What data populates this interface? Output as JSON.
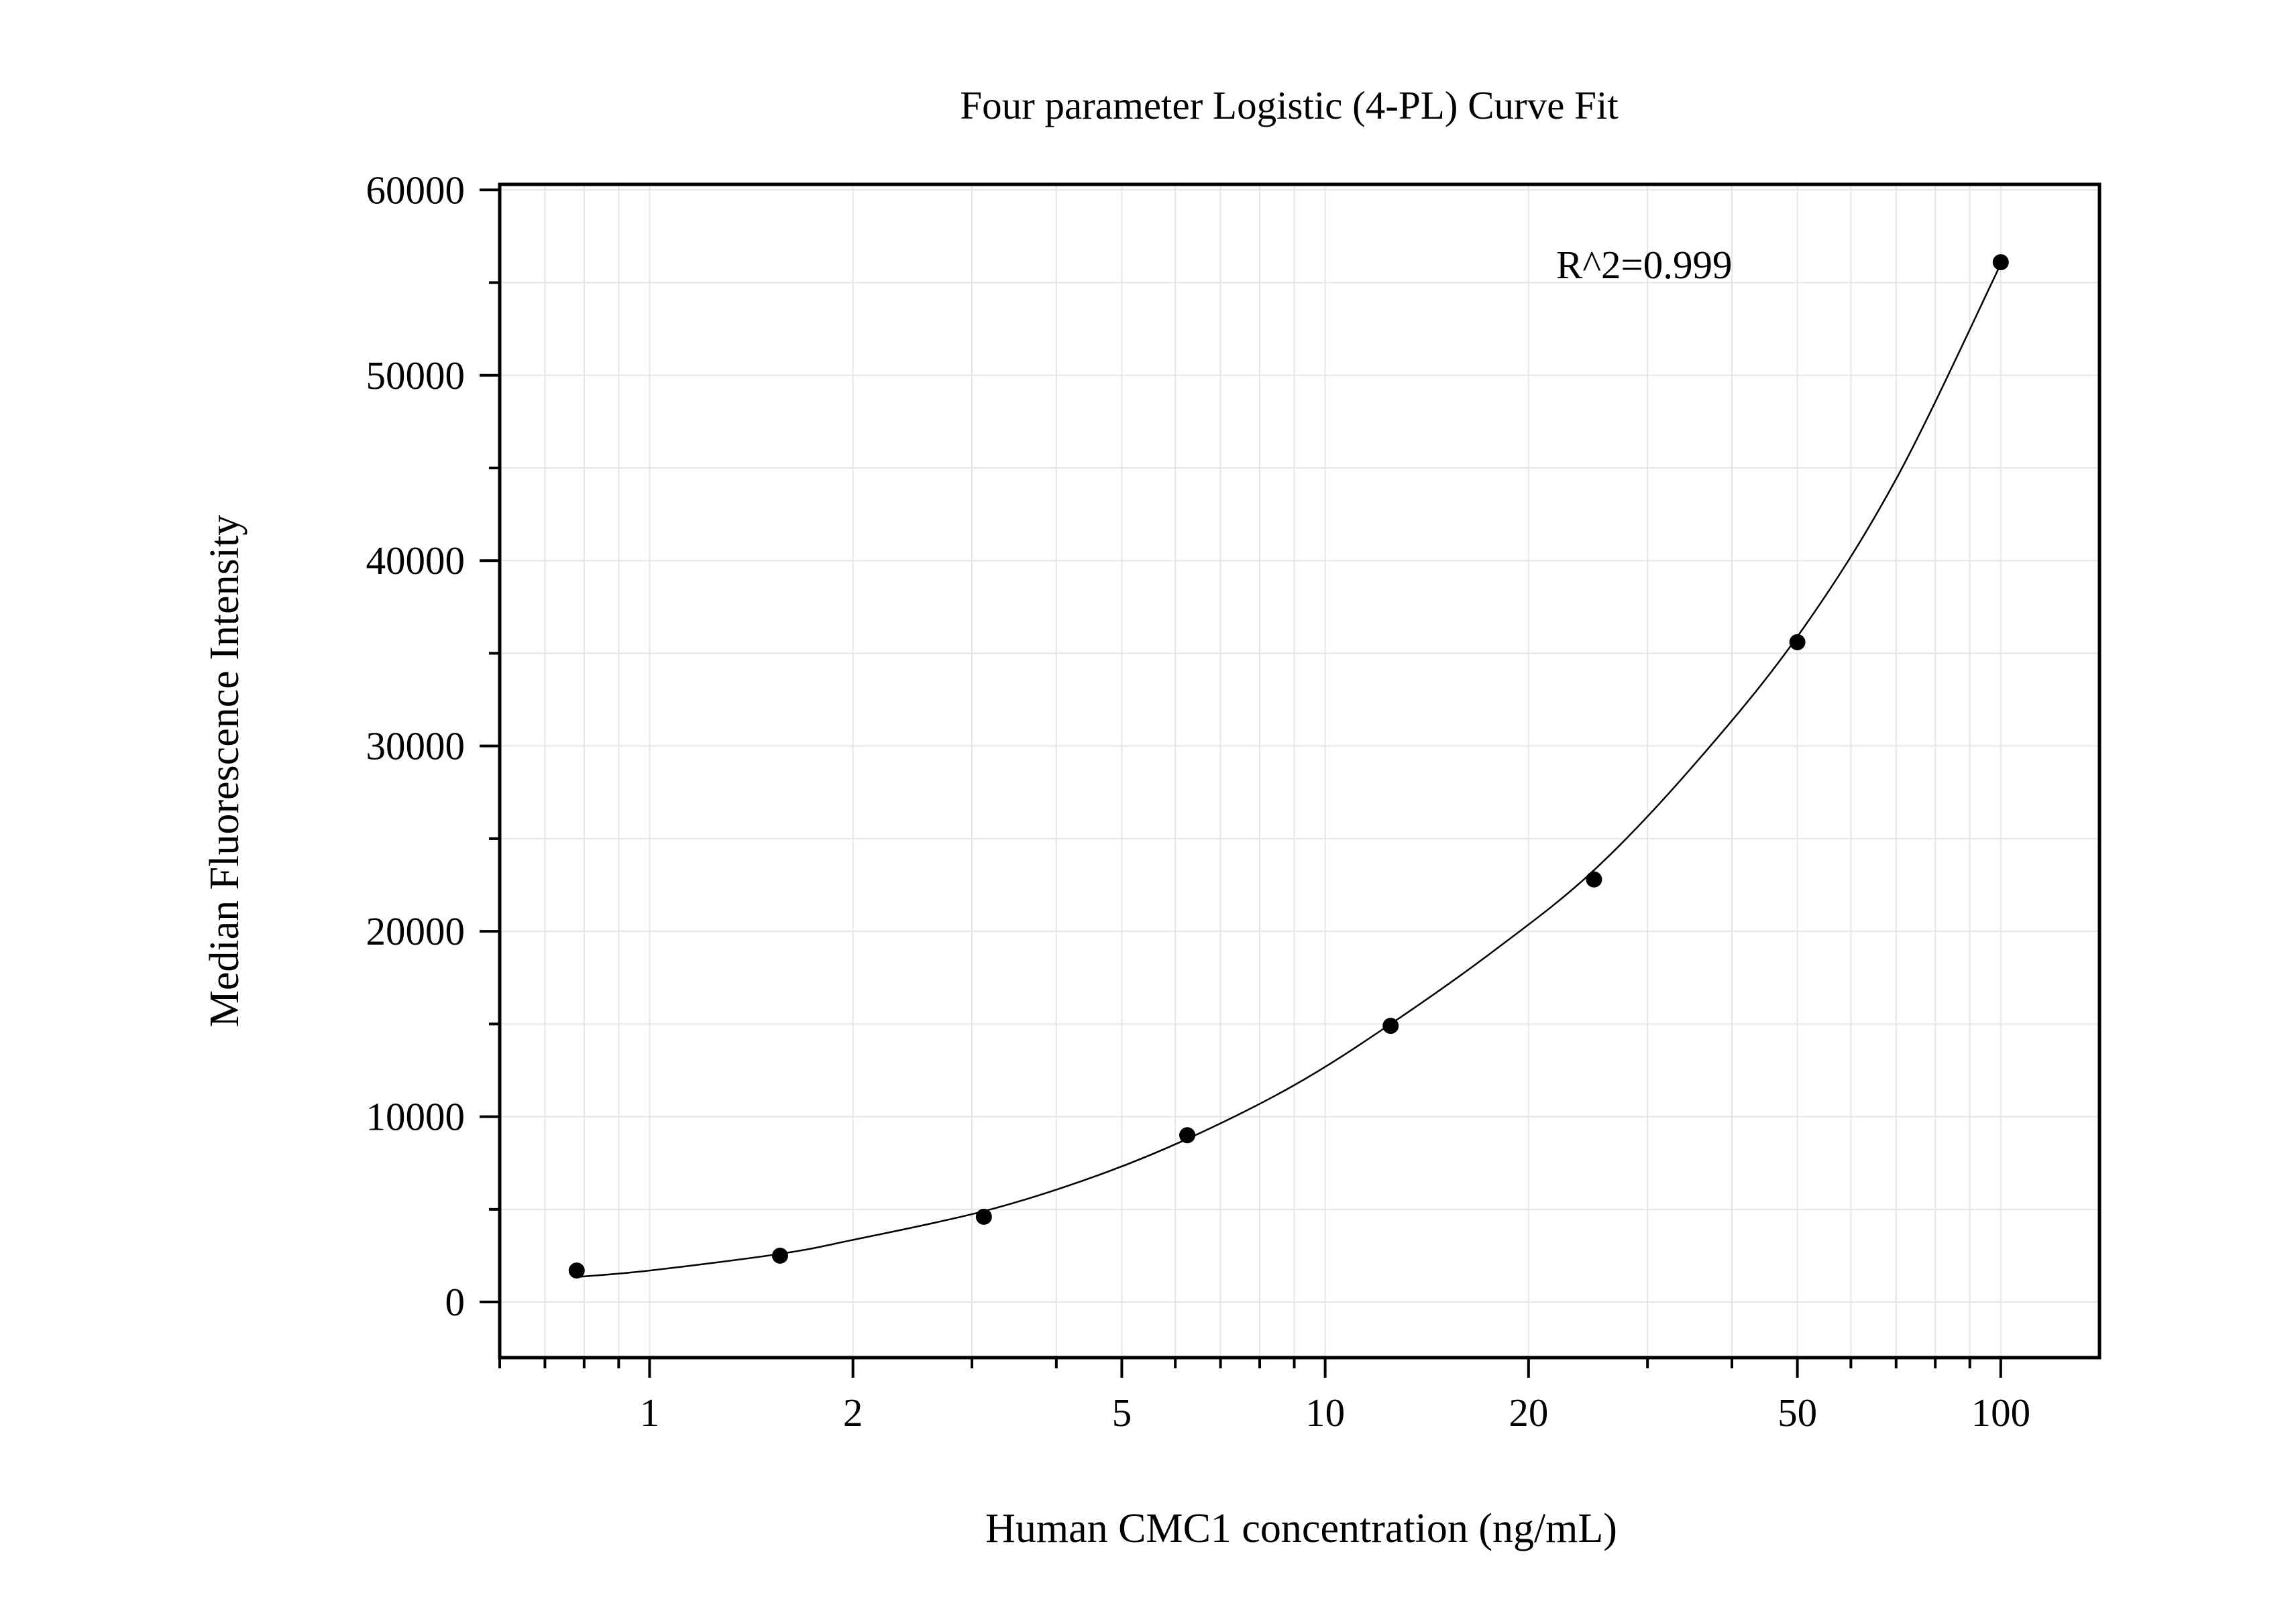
{
  "chart_data": {
    "type": "scatter",
    "title": "Four parameter Logistic (4-PL) Curve Fit",
    "xlabel": "Human CMC1 concentration (ng/mL)",
    "ylabel": "Median Fluorescence Intensity",
    "annotation": "R^2=0.999",
    "x_scale": "log",
    "xlim": [
      0.6,
      140
    ],
    "ylim": [
      -3000,
      60300
    ],
    "x_ticks": [
      1,
      2,
      5,
      10,
      20,
      50,
      100
    ],
    "x_tick_labels": [
      "1",
      "2",
      "5",
      "10",
      "20",
      "50",
      "100"
    ],
    "y_ticks": [
      0,
      10000,
      20000,
      30000,
      40000,
      50000,
      60000
    ],
    "y_tick_labels": [
      "0",
      "10000",
      "20000",
      "30000",
      "40000",
      "50000",
      "60000"
    ],
    "grid": true,
    "series": [
      {
        "points": [
          {
            "x": 0.78,
            "y": 1700
          },
          {
            "x": 1.56,
            "y": 2500
          },
          {
            "x": 3.125,
            "y": 4600
          },
          {
            "x": 6.25,
            "y": 9000
          },
          {
            "x": 12.5,
            "y": 14900
          },
          {
            "x": 25,
            "y": 22800
          },
          {
            "x": 50,
            "y": 35600
          },
          {
            "x": 100,
            "y": 56100
          }
        ]
      }
    ],
    "fit_curve": {
      "model": "4-PL",
      "points": [
        {
          "x": 0.78,
          "y": 1350
        },
        {
          "x": 1.0,
          "y": 1700
        },
        {
          "x": 1.56,
          "y": 2600
        },
        {
          "x": 2.0,
          "y": 3350
        },
        {
          "x": 3.125,
          "y": 4900
        },
        {
          "x": 4.5,
          "y": 6700
        },
        {
          "x": 6.25,
          "y": 8800
        },
        {
          "x": 9.0,
          "y": 11700
        },
        {
          "x": 12.5,
          "y": 15000
        },
        {
          "x": 18,
          "y": 19100
        },
        {
          "x": 25,
          "y": 23300
        },
        {
          "x": 35,
          "y": 28900
        },
        {
          "x": 50,
          "y": 35900
        },
        {
          "x": 70,
          "y": 44400
        },
        {
          "x": 100,
          "y": 56000
        }
      ]
    },
    "colors": {
      "points": "#000000",
      "curve": "#000000",
      "grid": "#e6e6e6",
      "axis": "#000000"
    }
  }
}
